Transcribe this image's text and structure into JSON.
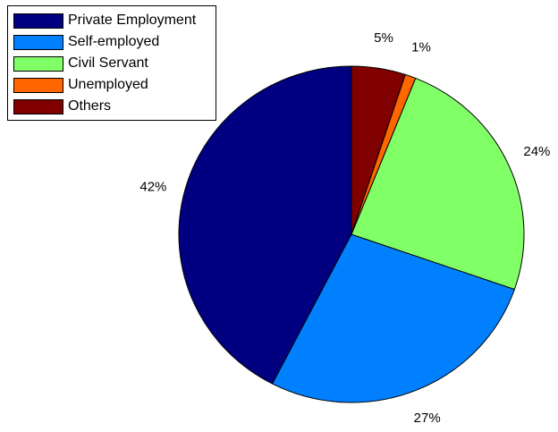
{
  "chart_data": {
    "type": "pie",
    "categories": [
      "Private Employment",
      "Self-employed",
      "Civil Servant",
      "Unemployed",
      "Others"
    ],
    "values": [
      42,
      27,
      24,
      1,
      5
    ],
    "labels": [
      "42%",
      "27%",
      "24%",
      "1%",
      "5%"
    ],
    "colors": [
      "#000080",
      "#0080ff",
      "#80ff66",
      "#ff6600",
      "#800000"
    ],
    "legend": {
      "entries": [
        "Private Employment",
        "Self-employed",
        "Civil Servant",
        "Unemployed",
        "Others"
      ],
      "placement": "top-left"
    },
    "title": "",
    "direction": "counterclockwise",
    "start": "top"
  }
}
